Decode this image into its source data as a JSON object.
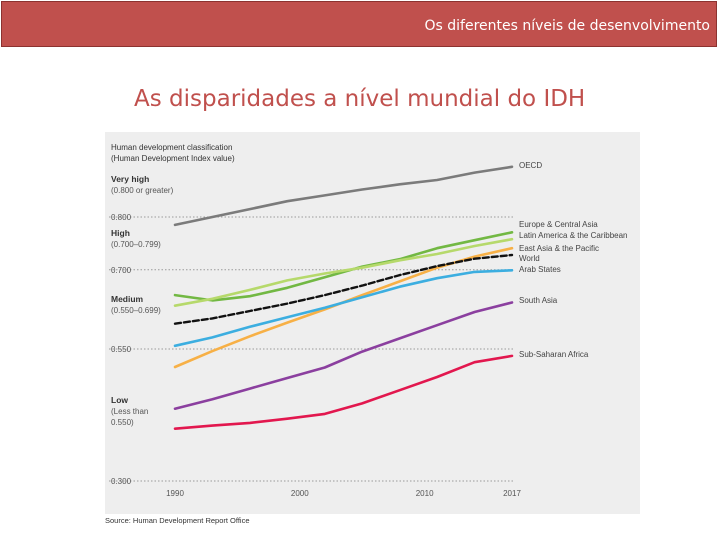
{
  "header": {
    "banner_text": "Os diferentes níveis de desenvolvimento"
  },
  "slide": {
    "title": "As disparidades a nível mundial do IDH"
  },
  "chart_data": {
    "type": "line",
    "title": "Human development classification",
    "subtitle": "(Human Development Index value)",
    "xlabel": "",
    "ylabel": "",
    "x_ticks": [
      1990,
      2000,
      2010,
      2017
    ],
    "y_ticks": [
      "0.300",
      "0.550",
      "0.700",
      "0.800"
    ],
    "xlim": [
      1990,
      2017
    ],
    "ylim": [
      0.3,
      1.0
    ],
    "grid": "dotted horizontal lines at category thresholds",
    "bands": [
      {
        "name": "Very high",
        "range": "(0.800 or greater)"
      },
      {
        "name": "High",
        "range": "(0.700–0.799)"
      },
      {
        "name": "Medium",
        "range": "(0.550–0.699)"
      },
      {
        "name": "Low",
        "range": "(Less than\n0.550)"
      }
    ],
    "x": [
      1990,
      1993,
      1996,
      1999,
      2002,
      2005,
      2008,
      2011,
      2014,
      2017
    ],
    "series": [
      {
        "name": "OECD",
        "color": "#7b7b7b",
        "dashed": false,
        "values": [
          0.785,
          0.8,
          0.815,
          0.83,
          0.841,
          0.852,
          0.862,
          0.87,
          0.884,
          0.895
        ]
      },
      {
        "name": "Europe & Central Asia",
        "color": "#72b843",
        "dashed": false,
        "values": [
          0.652,
          0.642,
          0.65,
          0.666,
          0.686,
          0.706,
          0.72,
          0.741,
          0.756,
          0.771
        ]
      },
      {
        "name": "Latin America & the Caribbean",
        "color": "#b6d96b",
        "dashed": false,
        "values": [
          0.632,
          0.645,
          0.662,
          0.68,
          0.693,
          0.704,
          0.718,
          0.73,
          0.745,
          0.758
        ]
      },
      {
        "name": "East Asia & the Pacific",
        "color": "#f7b046",
        "dashed": false,
        "values": [
          0.516,
          0.546,
          0.574,
          0.6,
          0.625,
          0.652,
          0.678,
          0.704,
          0.725,
          0.741
        ]
      },
      {
        "name": "World",
        "color": "#111111",
        "dashed": true,
        "values": [
          0.598,
          0.608,
          0.622,
          0.636,
          0.652,
          0.67,
          0.69,
          0.707,
          0.721,
          0.728
        ]
      },
      {
        "name": "Arab States",
        "color": "#3caee0",
        "dashed": false,
        "values": [
          0.556,
          0.572,
          0.592,
          0.61,
          0.628,
          0.648,
          0.668,
          0.684,
          0.696,
          0.699
        ]
      },
      {
        "name": "South Asia",
        "color": "#8b3f9f",
        "dashed": false,
        "values": [
          0.437,
          0.455,
          0.475,
          0.495,
          0.515,
          0.545,
          0.57,
          0.595,
          0.62,
          0.638
        ]
      },
      {
        "name": "Sub-Saharan Africa",
        "color": "#e2174e",
        "dashed": false,
        "values": [
          0.399,
          0.405,
          0.41,
          0.418,
          0.427,
          0.447,
          0.472,
          0.497,
          0.525,
          0.537
        ]
      }
    ],
    "legend": [
      "OECD",
      "Europe & Central Asia",
      "Latin America & the Caribbean",
      "East Asia & the Pacific",
      "World",
      "Arab States",
      "South Asia",
      "Sub-Saharan Africa"
    ],
    "legend_placement": "right",
    "source": "Source: Human Development Report Office"
  }
}
